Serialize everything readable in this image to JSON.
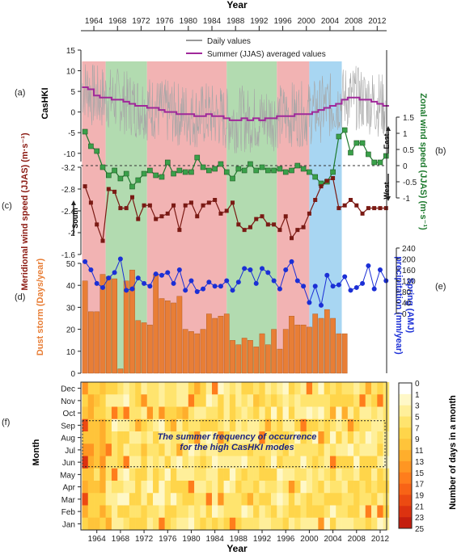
{
  "chart_data": [
    {
      "type": "line",
      "panel_label": "(a)",
      "ylabel": "CasHKI",
      "top_xlabel": "Year",
      "x_ticks": [
        "1964",
        "1968",
        "1972",
        "1976",
        "1980",
        "1984",
        "1988",
        "1992",
        "1996",
        "2000",
        "2004",
        "2008",
        "2012"
      ],
      "ylim": [
        -12,
        15
      ],
      "y_ticks": [
        "15",
        "10",
        "5",
        "0",
        "-5",
        "-10"
      ],
      "legend": [
        "Daily values",
        "Summer (JJAS) averaged values"
      ],
      "series": [
        {
          "name": "Summer (JJAS) averaged values",
          "color": "#a0289a",
          "x": [
            1962,
            1963,
            1964,
            1965,
            1966,
            1967,
            1968,
            1969,
            1970,
            1971,
            1972,
            1973,
            1974,
            1975,
            1976,
            1977,
            1978,
            1979,
            1980,
            1981,
            1982,
            1983,
            1984,
            1985,
            1986,
            1987,
            1988,
            1989,
            1990,
            1991,
            1992,
            1993,
            1994,
            1995,
            1996,
            1997,
            1998,
            1999,
            2000,
            2001,
            2002,
            2003,
            2004,
            2005,
            2006,
            2007,
            2008,
            2009,
            2010,
            2011,
            2012,
            2013
          ],
          "values": [
            6,
            5.5,
            4,
            3.5,
            3.5,
            3,
            3,
            2.5,
            2,
            1.5,
            1.5,
            1,
            1,
            0.5,
            0,
            0,
            -0.5,
            -0.5,
            -0.5,
            -1,
            -1,
            -0.5,
            -1,
            -1,
            -1.5,
            -2,
            -2,
            -1.5,
            -2,
            -1.5,
            -2,
            -1.5,
            -1.5,
            -1,
            -1,
            -1,
            -0.5,
            -0.5,
            -0.5,
            0,
            0.5,
            1,
            1.5,
            2,
            3,
            3.5,
            3.5,
            3,
            3,
            2.5,
            2,
            1.5
          ]
        }
      ]
    },
    {
      "type": "line",
      "panel_label": "(b)",
      "ylabel": "Zonal wind speed (JJAS) (m·s⁻¹)",
      "ylim": [
        -1,
        1.5
      ],
      "y_ticks": [
        "1.5",
        "1",
        "0.5",
        "0",
        "-0.5",
        "-1"
      ],
      "annotations": [
        "East",
        "West"
      ],
      "series": [
        {
          "name": "",
          "color": "#1e7a2e",
          "x": [
            1962,
            1963,
            1964,
            1965,
            1966,
            1967,
            1968,
            1969,
            1970,
            1971,
            1972,
            1973,
            1974,
            1975,
            1976,
            1977,
            1978,
            1979,
            1980,
            1981,
            1982,
            1983,
            1984,
            1985,
            1986,
            1987,
            1988,
            1989,
            1990,
            1991,
            1992,
            1993,
            1994,
            1995,
            1996,
            1997,
            1998,
            1999,
            2000,
            2001,
            2002,
            2003,
            2004,
            2005,
            2006,
            2007,
            2008,
            2009,
            2010,
            2011,
            2012,
            2013
          ],
          "values": [
            1.05,
            0.6,
            0.45,
            -0.05,
            -0.3,
            -0.15,
            -0.4,
            -0.25,
            -0.65,
            -0.45,
            -0.25,
            -0.15,
            -0.3,
            -0.35,
            0.1,
            -0.25,
            -0.15,
            -0.2,
            -0.2,
            0.25,
            -0.05,
            -0.15,
            -0.1,
            0.05,
            -0.2,
            -0.4,
            -0.1,
            -0.15,
            0.05,
            -0.15,
            -0.05,
            -0.15,
            -0.15,
            -0.1,
            -0.2,
            -0.15,
            0,
            -0.1,
            -0.2,
            -0.35,
            -0.55,
            -0.5,
            -0.2,
            0.9,
            1.1,
            0.4,
            0.7,
            0.7,
            0.35,
            0.1,
            0.1,
            0.3
          ]
        }
      ]
    },
    {
      "type": "line",
      "panel_label": "(c)",
      "ylabel": "Meridional wind speed (JJAS) (m·s⁻¹)",
      "ylim": [
        -3.2,
        -1.6
      ],
      "y_ticks": [
        "-3.2",
        "-2.8",
        "-2.4",
        "-2",
        "-1.6"
      ],
      "annotations": [
        "South"
      ],
      "series": [
        {
          "name": "",
          "color": "#7a1a14",
          "x": [
            1962,
            1963,
            1964,
            1965,
            1966,
            1967,
            1968,
            1969,
            1970,
            1971,
            1972,
            1973,
            1974,
            1975,
            1976,
            1977,
            1978,
            1979,
            1980,
            1981,
            1982,
            1983,
            1984,
            1985,
            1986,
            1987,
            1988,
            1989,
            1990,
            1991,
            1992,
            1993,
            1994,
            1995,
            1996,
            1997,
            1998,
            1999,
            2000,
            2001,
            2002,
            2003,
            2004,
            2005,
            2006,
            2007,
            2008,
            2009,
            2010,
            2011,
            2012,
            2013
          ],
          "values": [
            -2.85,
            -2.55,
            -2.15,
            -1.85,
            -2.8,
            -2.75,
            -2.45,
            -2.45,
            -2.65,
            -2.25,
            -2.5,
            -2.5,
            -2.25,
            -2.3,
            -2.35,
            -2.5,
            -2.05,
            -2.5,
            -2.55,
            -2.3,
            -2.5,
            -2.55,
            -2.6,
            -2.35,
            -2.4,
            -2.55,
            -2.15,
            -2.05,
            -2.1,
            -2.25,
            -2.3,
            -2.15,
            -2.15,
            -2.05,
            -2.3,
            -1.9,
            -2.05,
            -2.1,
            -2.35,
            -2.6,
            -2.85,
            -2.95,
            -3.0,
            -2.45,
            -2.5,
            -2.6,
            -2.5,
            -2.35,
            -2.45,
            -2.45,
            -2.45,
            -2.45
          ]
        }
      ]
    },
    {
      "type": "bar",
      "panel_label": "(d)",
      "ylabel": "Dust storm (Days/year)",
      "ylim": [
        0,
        50
      ],
      "y_ticks": [
        "50",
        "40",
        "30",
        "20",
        "10",
        "0"
      ],
      "x": [
        1962,
        1963,
        1964,
        1965,
        1966,
        1967,
        1968,
        1969,
        1970,
        1971,
        1972,
        1973,
        1974,
        1975,
        1976,
        1977,
        1978,
        1979,
        1980,
        1981,
        1982,
        1983,
        1984,
        1985,
        1986,
        1987,
        1988,
        1989,
        1990,
        1991,
        1992,
        1993,
        1994,
        1995,
        1996,
        1997,
        1998,
        1999,
        2000,
        2001,
        2002,
        2003,
        2004,
        2005,
        2006
      ],
      "values": [
        42,
        28,
        28,
        45,
        44,
        43,
        2,
        42,
        47,
        24,
        23,
        22,
        45,
        34,
        33,
        32,
        35,
        20,
        19,
        18,
        20,
        27,
        25,
        26,
        27,
        15,
        13,
        16,
        15,
        12,
        18,
        13,
        20,
        11,
        20,
        26,
        22,
        22,
        21,
        27,
        25,
        29,
        25,
        18,
        18
      ],
      "color": "#e87e36"
    },
    {
      "type": "line",
      "panel_label": "(e)",
      "ylabel": "Spring (AMJ) precipitation (mm/year)",
      "ylim": [
        0,
        240
      ],
      "y_ticks": [
        "240",
        "200",
        "160",
        "120",
        "80",
        "40",
        "0"
      ],
      "series": [
        {
          "name": "",
          "color": "#1b2fd6",
          "x": [
            1962,
            1963,
            1964,
            1965,
            1966,
            1967,
            1968,
            1969,
            1970,
            1971,
            1972,
            1973,
            1974,
            1975,
            1976,
            1977,
            1978,
            1979,
            1980,
            1981,
            1982,
            1983,
            1984,
            1985,
            1986,
            1987,
            1988,
            1989,
            1990,
            1991,
            1992,
            1993,
            1994,
            1995,
            1996,
            1997,
            1998,
            1999,
            2000,
            2001,
            2002,
            2003,
            2004,
            2005,
            2006,
            2007,
            2008,
            2009,
            2010,
            2011,
            2012,
            2013
          ],
          "values": [
            190,
            160,
            110,
            95,
            130,
            150,
            200,
            85,
            90,
            130,
            110,
            100,
            145,
            140,
            150,
            110,
            160,
            85,
            120,
            80,
            90,
            115,
            100,
            100,
            120,
            85,
            115,
            165,
            160,
            110,
            165,
            150,
            120,
            90,
            160,
            190,
            120,
            100,
            40,
            100,
            30,
            140,
            100,
            105,
            135,
            85,
            95,
            110,
            175,
            90,
            160,
            120
          ]
        }
      ]
    },
    {
      "type": "heatmap",
      "panel_label": "(f)",
      "xlabel": "Year",
      "ylabel": "Month",
      "x_ticks": [
        "1964",
        "1968",
        "1972",
        "1976",
        "1980",
        "1984",
        "1988",
        "1992",
        "1996",
        "2000",
        "2004",
        "2008",
        "2012"
      ],
      "rows": [
        "Dec",
        "Nov",
        "Oct",
        "Sep",
        "Aug",
        "Jul",
        "Jun",
        "May",
        "Apr",
        "Mar",
        "Feb",
        "Jan"
      ],
      "colorbar_label": "Number of days in a month",
      "colorbar_ticks": [
        "0",
        "1",
        "3",
        "5",
        "7",
        "9",
        "11",
        "13",
        "15",
        "17",
        "19",
        "21",
        "23",
        "25"
      ],
      "annotation": "The summer frequency of occurrence for the high CasHKI modes"
    }
  ],
  "shading": [
    {
      "from": 1962,
      "to": 1966,
      "color": "#f2b3b3"
    },
    {
      "from": 1966,
      "to": 1973,
      "color": "#b2dbb0"
    },
    {
      "from": 1973,
      "to": 1986.5,
      "color": "#f2b3b3"
    },
    {
      "from": 1986.5,
      "to": 1995,
      "color": "#b2dbb0"
    },
    {
      "from": 1995,
      "to": 2000.5,
      "color": "#f2b3b3"
    },
    {
      "from": 2000.5,
      "to": 2006,
      "color": "#a8d6f2"
    }
  ]
}
